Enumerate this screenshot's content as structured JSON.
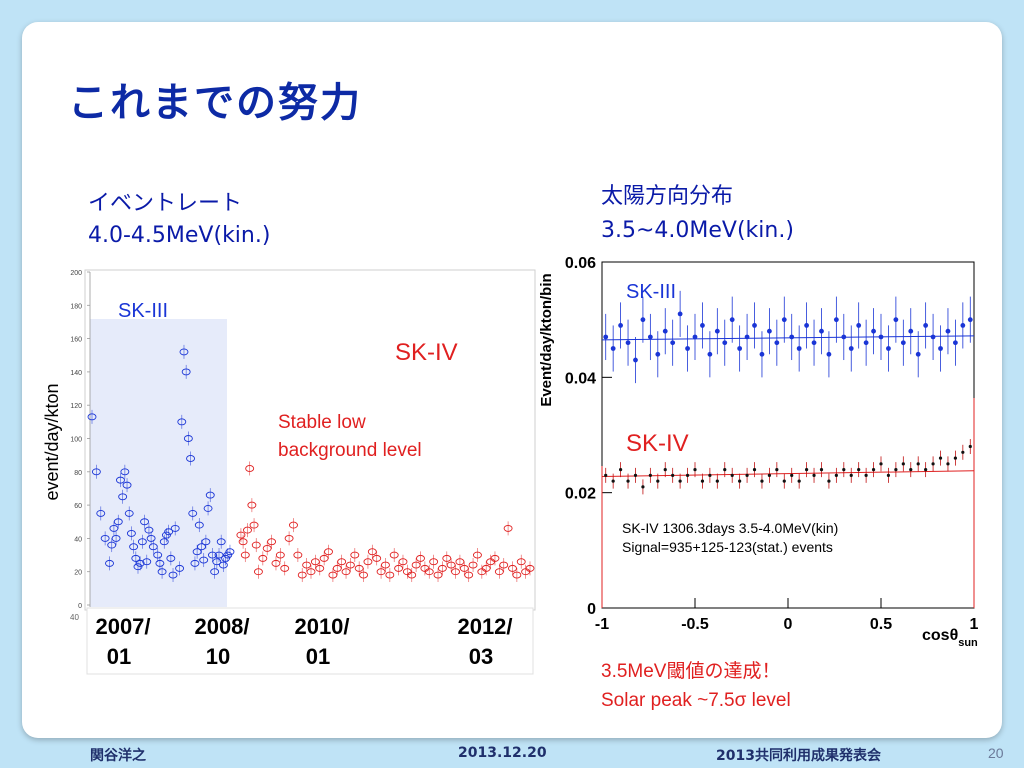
{
  "slide": {
    "title": "これまでの努力",
    "left_heading_line1": "イベントレート",
    "left_heading_line2": "4.0-4.5MeV(kin.)",
    "right_heading_line1": "太陽方向分布",
    "right_heading_line2": "3.5~4.0MeV(kin.)",
    "achievement_line1": "3.5MeV閾値の達成！",
    "achievement_line2": "Solar peak  ~7.5σ level"
  },
  "footer": {
    "author": "関谷洋之",
    "date": "2013.12.20",
    "event": "2013共同利用成果発表会",
    "page": "20"
  },
  "colors": {
    "sk3": "#1a35d6",
    "sk4": "#e02020",
    "title": "#0d2aa5"
  },
  "chart_data": [
    {
      "type": "scatter",
      "ylabel": "event/day/kton",
      "ylim": [
        0,
        200
      ],
      "yticks": [
        "0",
        "20",
        "40",
        "60",
        "80",
        "100",
        "120",
        "140",
        "160",
        "180",
        "200"
      ],
      "x_tick_labels": [
        {
          "line1": "2007/",
          "line2": "01"
        },
        {
          "line1": "2008/",
          "line2": "10"
        },
        {
          "line1": "2010/",
          "line2": "01"
        },
        {
          "line1": "2012/",
          "line2": "03"
        }
      ],
      "y_axis_bottom_mark": "40",
      "labels": {
        "sk3": "SK-III",
        "sk4": "SK-IV",
        "annotation_line1": "Stable low",
        "annotation_line2": "background level"
      },
      "series": [
        {
          "name": "SK-III",
          "x": [
            0.0,
            0.01,
            0.02,
            0.03,
            0.04,
            0.045,
            0.05,
            0.055,
            0.06,
            0.065,
            0.07,
            0.075,
            0.08,
            0.085,
            0.09,
            0.095,
            0.1,
            0.105,
            0.11,
            0.115,
            0.12,
            0.125,
            0.13,
            0.135,
            0.14,
            0.15,
            0.155,
            0.16,
            0.165,
            0.17,
            0.175,
            0.18,
            0.185,
            0.19,
            0.2,
            0.205,
            0.21,
            0.215,
            0.22,
            0.225,
            0.23,
            0.235,
            0.24,
            0.245,
            0.25,
            0.255,
            0.26,
            0.265,
            0.27,
            0.275,
            0.28,
            0.285,
            0.29,
            0.295,
            0.3,
            0.305,
            0.31,
            0.315
          ],
          "y": [
            113,
            80,
            55,
            40,
            25,
            36,
            46,
            40,
            50,
            75,
            65,
            80,
            72,
            55,
            43,
            35,
            28,
            23,
            25,
            38,
            50,
            26,
            45,
            40,
            35,
            30,
            25,
            20,
            38,
            42,
            44,
            28,
            18,
            46,
            22,
            110,
            152,
            140,
            100,
            88,
            55,
            25,
            32,
            48,
            35,
            27,
            38,
            58,
            66,
            30,
            20,
            26,
            30,
            38,
            24,
            28,
            30,
            32
          ],
          "color": "#1a35d6"
        },
        {
          "name": "SK-IV",
          "x": [
            0.34,
            0.345,
            0.35,
            0.355,
            0.36,
            0.365,
            0.37,
            0.375,
            0.38,
            0.39,
            0.4,
            0.41,
            0.42,
            0.43,
            0.44,
            0.45,
            0.46,
            0.47,
            0.48,
            0.49,
            0.5,
            0.51,
            0.52,
            0.53,
            0.54,
            0.55,
            0.56,
            0.57,
            0.58,
            0.59,
            0.6,
            0.61,
            0.62,
            0.63,
            0.64,
            0.65,
            0.66,
            0.67,
            0.68,
            0.69,
            0.7,
            0.71,
            0.72,
            0.73,
            0.74,
            0.75,
            0.76,
            0.77,
            0.78,
            0.79,
            0.8,
            0.81,
            0.82,
            0.83,
            0.84,
            0.85,
            0.86,
            0.87,
            0.88,
            0.89,
            0.9,
            0.91,
            0.92,
            0.93,
            0.94,
            0.95,
            0.96,
            0.97,
            0.98,
            0.99,
            1.0
          ],
          "y": [
            42,
            38,
            30,
            45,
            82,
            60,
            48,
            36,
            20,
            28,
            34,
            38,
            25,
            30,
            22,
            40,
            48,
            30,
            18,
            24,
            20,
            26,
            22,
            28,
            32,
            18,
            22,
            26,
            20,
            24,
            30,
            22,
            18,
            26,
            32,
            28,
            20,
            24,
            18,
            30,
            22,
            26,
            20,
            18,
            24,
            28,
            22,
            20,
            26,
            18,
            22,
            28,
            24,
            20,
            26,
            22,
            18,
            24,
            30,
            20,
            22,
            26,
            28,
            20,
            24,
            46,
            22,
            18,
            26,
            20,
            22
          ],
          "color": "#e02020"
        }
      ]
    },
    {
      "type": "scatter",
      "ylabel": "Event/day/kton/bin",
      "xlabel": "cosθsun",
      "xlim": [
        -1,
        1
      ],
      "ylim": [
        0,
        0.06
      ],
      "yticks": [
        "0",
        "0.02",
        "0.04",
        "0.06"
      ],
      "xticks": [
        "-1",
        "-0.5",
        "0",
        "0.5",
        "1"
      ],
      "labels": {
        "sk3": "SK-III",
        "sk4": "SK-IV",
        "stat_line1": "SK-IV 1306.3days 3.5-4.0MeV(kin)",
        "stat_line2": "Signal=935+125-123(stat.) events"
      },
      "series": [
        {
          "name": "SK-III",
          "x": [
            -0.98,
            -0.94,
            -0.9,
            -0.86,
            -0.82,
            -0.78,
            -0.74,
            -0.7,
            -0.66,
            -0.62,
            -0.58,
            -0.54,
            -0.5,
            -0.46,
            -0.42,
            -0.38,
            -0.34,
            -0.3,
            -0.26,
            -0.22,
            -0.18,
            -0.14,
            -0.1,
            -0.06,
            -0.02,
            0.02,
            0.06,
            0.1,
            0.14,
            0.18,
            0.22,
            0.26,
            0.3,
            0.34,
            0.38,
            0.42,
            0.46,
            0.5,
            0.54,
            0.58,
            0.62,
            0.66,
            0.7,
            0.74,
            0.78,
            0.82,
            0.86,
            0.9,
            0.94,
            0.98
          ],
          "y": [
            0.047,
            0.045,
            0.049,
            0.046,
            0.043,
            0.05,
            0.047,
            0.044,
            0.048,
            0.046,
            0.051,
            0.045,
            0.047,
            0.049,
            0.044,
            0.048,
            0.046,
            0.05,
            0.045,
            0.047,
            0.049,
            0.044,
            0.048,
            0.046,
            0.05,
            0.047,
            0.045,
            0.049,
            0.046,
            0.048,
            0.044,
            0.05,
            0.047,
            0.045,
            0.049,
            0.046,
            0.048,
            0.047,
            0.045,
            0.05,
            0.046,
            0.048,
            0.044,
            0.049,
            0.047,
            0.045,
            0.048,
            0.046,
            0.049,
            0.05
          ],
          "color": "#1a35d6"
        },
        {
          "name": "SK-IV",
          "x": [
            -0.98,
            -0.94,
            -0.9,
            -0.86,
            -0.82,
            -0.78,
            -0.74,
            -0.7,
            -0.66,
            -0.62,
            -0.58,
            -0.54,
            -0.5,
            -0.46,
            -0.42,
            -0.38,
            -0.34,
            -0.3,
            -0.26,
            -0.22,
            -0.18,
            -0.14,
            -0.1,
            -0.06,
            -0.02,
            0.02,
            0.06,
            0.1,
            0.14,
            0.18,
            0.22,
            0.26,
            0.3,
            0.34,
            0.38,
            0.42,
            0.46,
            0.5,
            0.54,
            0.58,
            0.62,
            0.66,
            0.7,
            0.74,
            0.78,
            0.82,
            0.86,
            0.9,
            0.94,
            0.98
          ],
          "y": [
            0.023,
            0.022,
            0.024,
            0.022,
            0.023,
            0.021,
            0.023,
            0.022,
            0.024,
            0.023,
            0.022,
            0.023,
            0.024,
            0.022,
            0.023,
            0.022,
            0.024,
            0.023,
            0.022,
            0.023,
            0.024,
            0.022,
            0.023,
            0.024,
            0.022,
            0.023,
            0.022,
            0.024,
            0.023,
            0.024,
            0.022,
            0.023,
            0.024,
            0.023,
            0.024,
            0.023,
            0.024,
            0.025,
            0.023,
            0.024,
            0.025,
            0.024,
            0.025,
            0.024,
            0.025,
            0.026,
            0.025,
            0.026,
            0.027,
            0.028
          ],
          "color": "#c01010"
        }
      ]
    }
  ]
}
